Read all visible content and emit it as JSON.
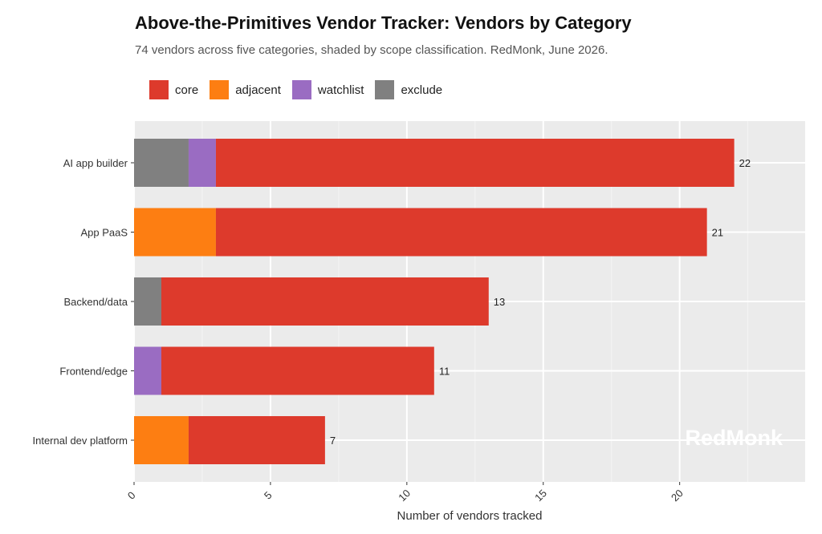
{
  "title": "Above-the-Primitives Vendor Tracker: Vendors by Category",
  "subtitle": "74 vendors across five categories, shaded by scope classification. RedMonk, June 2026.",
  "legend": [
    {
      "label": "core",
      "color": "#dd3a2c"
    },
    {
      "label": "adjacent",
      "color": "#fd7e12"
    },
    {
      "label": "watchlist",
      "color": "#9a6cc2"
    },
    {
      "label": "exclude",
      "color": "#808080"
    }
  ],
  "watermark": "RedMonk",
  "chart_data": {
    "type": "bar",
    "orientation": "horizontal",
    "stacked": true,
    "categories": [
      "AI app builder",
      "App PaaS",
      "Backend/data",
      "Frontend/edge",
      "Internal dev platform"
    ],
    "series": [
      {
        "name": "exclude",
        "color": "#808080",
        "values": [
          2,
          0,
          1,
          0,
          0
        ]
      },
      {
        "name": "watchlist",
        "color": "#9a6cc2",
        "values": [
          1,
          0,
          0,
          1,
          0
        ]
      },
      {
        "name": "adjacent",
        "color": "#fd7e12",
        "values": [
          0,
          3,
          0,
          0,
          2
        ]
      },
      {
        "name": "core",
        "color": "#dd3a2c",
        "values": [
          19,
          18,
          12,
          10,
          5
        ]
      }
    ],
    "totals": [
      22,
      21,
      13,
      11,
      7
    ],
    "xlabel": "Number of vendors tracked",
    "ylabel": "",
    "xlim": [
      0,
      24.6
    ],
    "xticks": [
      0,
      5,
      10,
      15,
      20
    ],
    "grid": true,
    "legend_position": "top-left",
    "panel_background": "#ebebeb"
  }
}
